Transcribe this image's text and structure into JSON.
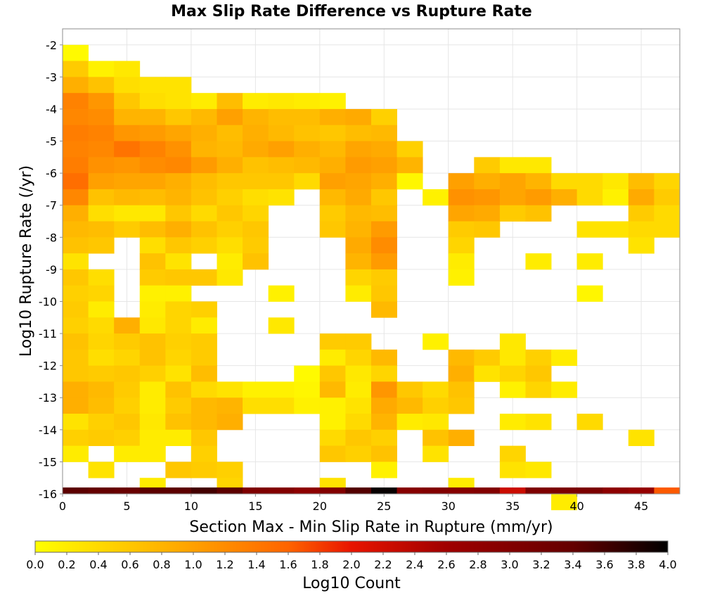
{
  "chart_data": {
    "type": "heatmap",
    "title": "Max Slip Rate Difference vs Rupture Rate",
    "xlabel": "Section Max - Min Slip Rate in Rupture (mm/yr)",
    "ylabel": "Log10 Rupture Rate (/yr)",
    "xlim": [
      0,
      48
    ],
    "ylim": [
      -16,
      -1.5
    ],
    "xticks": [
      "0",
      "5",
      "10",
      "15",
      "20",
      "25",
      "30",
      "35",
      "40",
      "45"
    ],
    "yticks": [
      "-2",
      "-3",
      "-4",
      "-5",
      "-6",
      "-7",
      "-8",
      "-9",
      "-10",
      "-11",
      "-12",
      "-13",
      "-14",
      "-15",
      "-16"
    ],
    "grid": true,
    "bin_width_x": 2,
    "bin_height_y": 0.5,
    "x_bin_starts": [
      0,
      2,
      4,
      6,
      8,
      10,
      12,
      14,
      16,
      18,
      20,
      22,
      24,
      26,
      28,
      30,
      32,
      34,
      36,
      38,
      40,
      42,
      44,
      46
    ],
    "y_bin_tops": [
      -1.5,
      -2.0,
      -2.5,
      -3.0,
      -3.5,
      -4.0,
      -4.5,
      -5.0,
      -5.5,
      -6.0,
      -6.5,
      -7.0,
      -7.5,
      -8.0,
      -8.5,
      -9.0,
      -9.5,
      -10.0,
      -10.5,
      -11.0,
      -11.5
    ],
    "values": [
      [
        null,
        null,
        null,
        null,
        null,
        null,
        null,
        null,
        null,
        null,
        null,
        null,
        null,
        null,
        null,
        null,
        null,
        null,
        null,
        null,
        null,
        null,
        null,
        null
      ],
      [
        0.05,
        null,
        null,
        null,
        null,
        null,
        null,
        null,
        null,
        null,
        null,
        null,
        null,
        null,
        null,
        null,
        null,
        null,
        null,
        null,
        null,
        null,
        null,
        null
      ],
      [
        0.55,
        0.15,
        0.25,
        null,
        null,
        null,
        null,
        null,
        null,
        null,
        null,
        null,
        null,
        null,
        null,
        null,
        null,
        null,
        null,
        null,
        null,
        null,
        null,
        null
      ],
      [
        0.85,
        0.65,
        0.35,
        0.3,
        0.3,
        null,
        null,
        null,
        null,
        null,
        null,
        null,
        null,
        null,
        null,
        null,
        null,
        null,
        null,
        null,
        null,
        null,
        null,
        null
      ],
      [
        1.3,
        1.1,
        0.6,
        0.35,
        0.3,
        0.2,
        0.7,
        0.2,
        0.25,
        0.2,
        0.15,
        null,
        null,
        null,
        null,
        null,
        null,
        null,
        null,
        null,
        null,
        null,
        null,
        null
      ],
      [
        1.25,
        1.2,
        0.8,
        0.8,
        0.6,
        0.75,
        1.0,
        0.8,
        0.7,
        0.7,
        0.85,
        0.9,
        0.5,
        null,
        null,
        null,
        null,
        null,
        null,
        null,
        null,
        null,
        null,
        null
      ],
      [
        1.35,
        1.3,
        1.1,
        1.05,
        0.95,
        0.85,
        0.7,
        0.85,
        0.75,
        0.65,
        0.6,
        0.7,
        0.75,
        null,
        null,
        null,
        null,
        null,
        null,
        null,
        null,
        null,
        null,
        null
      ],
      [
        1.3,
        1.25,
        1.45,
        1.3,
        1.15,
        0.8,
        0.75,
        0.9,
        1.0,
        0.85,
        0.75,
        0.95,
        0.9,
        0.5,
        null,
        null,
        null,
        null,
        null,
        null,
        null,
        null,
        null,
        null
      ],
      [
        1.35,
        1.15,
        1.1,
        1.2,
        1.25,
        1.05,
        0.85,
        0.65,
        0.7,
        0.75,
        0.85,
        1.05,
        1.0,
        0.8,
        null,
        null,
        0.55,
        0.25,
        0.25,
        null,
        null,
        null,
        null,
        null
      ],
      [
        1.5,
        1.0,
        0.95,
        0.95,
        0.85,
        0.7,
        0.6,
        0.6,
        0.6,
        0.4,
        1.0,
        0.95,
        0.85,
        0.1,
        null,
        1.0,
        0.85,
        0.95,
        0.8,
        0.4,
        0.4,
        0.25,
        0.7,
        0.45
      ],
      [
        1.25,
        0.65,
        0.75,
        0.7,
        0.8,
        0.65,
        0.5,
        0.35,
        0.3,
        null,
        0.75,
        0.9,
        0.6,
        null,
        0.15,
        1.15,
        1.1,
        0.95,
        1.05,
        0.85,
        0.4,
        0.15,
        0.9,
        0.55
      ],
      [
        0.85,
        0.35,
        0.25,
        0.25,
        0.6,
        0.4,
        0.6,
        0.45,
        null,
        null,
        0.55,
        0.75,
        0.7,
        null,
        null,
        0.95,
        0.9,
        0.55,
        0.65,
        null,
        null,
        null,
        0.55,
        0.4
      ],
      [
        0.75,
        0.7,
        0.55,
        0.7,
        0.85,
        0.65,
        0.5,
        0.6,
        null,
        null,
        0.6,
        0.8,
        1.05,
        null,
        null,
        0.55,
        0.6,
        null,
        null,
        null,
        0.3,
        0.3,
        0.4,
        0.4
      ],
      [
        0.65,
        0.6,
        null,
        0.35,
        0.6,
        0.5,
        0.35,
        0.55,
        null,
        null,
        null,
        0.9,
        1.2,
        null,
        null,
        0.45,
        null,
        null,
        null,
        null,
        null,
        null,
        0.3,
        null
      ],
      [
        0.3,
        null,
        null,
        0.65,
        0.3,
        null,
        0.2,
        0.65,
        null,
        null,
        null,
        0.8,
        1.05,
        null,
        null,
        0.2,
        null,
        null,
        0.2,
        null,
        0.2,
        null,
        null,
        null
      ],
      [
        0.6,
        0.35,
        null,
        0.55,
        0.6,
        0.6,
        0.25,
        null,
        null,
        null,
        null,
        0.45,
        0.55,
        null,
        null,
        0.15,
        null,
        null,
        null,
        null,
        null,
        null,
        null,
        null
      ],
      [
        0.5,
        0.45,
        null,
        0.15,
        0.15,
        null,
        null,
        null,
        0.15,
        null,
        null,
        0.2,
        0.6,
        null,
        null,
        null,
        null,
        null,
        null,
        null,
        0.1,
        null,
        null,
        null
      ],
      [
        0.55,
        0.2,
        null,
        0.2,
        0.45,
        0.5,
        null,
        null,
        null,
        null,
        null,
        null,
        0.75,
        null,
        null,
        null,
        null,
        null,
        null,
        null,
        null,
        null,
        null,
        null
      ],
      [
        0.5,
        0.4,
        0.85,
        0.25,
        0.45,
        0.2,
        null,
        null,
        0.25,
        null,
        null,
        null,
        null,
        null,
        null,
        null,
        null,
        null,
        null,
        null,
        null,
        null,
        null,
        null
      ],
      [
        0.65,
        0.45,
        0.55,
        0.65,
        0.5,
        0.55,
        null,
        null,
        null,
        null,
        0.55,
        0.55,
        null,
        null,
        0.15,
        null,
        null,
        0.25,
        null,
        null,
        null,
        null,
        null,
        null
      ]
    ],
    "values_lower": [
      [
        0.6,
        0.35,
        0.45,
        0.65,
        0.45,
        0.55,
        null,
        null,
        null,
        null,
        0.2,
        0.45,
        0.75,
        null,
        null,
        0.75,
        0.55,
        0.25,
        0.5,
        0.2,
        null,
        null,
        null,
        null
      ],
      [
        0.6,
        0.55,
        0.6,
        0.5,
        0.3,
        0.7,
        null,
        null,
        null,
        0.05,
        0.6,
        0.25,
        0.45,
        null,
        null,
        0.85,
        0.3,
        0.45,
        0.6,
        null,
        null,
        null,
        null,
        null
      ],
      [
        0.85,
        0.75,
        0.55,
        0.2,
        0.65,
        0.4,
        0.3,
        0.15,
        0.15,
        0.1,
        0.75,
        0.2,
        1.1,
        0.6,
        0.4,
        0.65,
        null,
        0.15,
        0.45,
        0.2,
        null,
        null,
        null,
        null
      ],
      [
        0.85,
        0.7,
        0.5,
        0.2,
        0.55,
        0.75,
        0.8,
        0.35,
        0.35,
        0.15,
        0.15,
        0.3,
        0.9,
        0.75,
        0.5,
        0.6,
        null,
        null,
        null,
        null,
        null,
        null,
        null,
        null
      ],
      [
        0.3,
        0.5,
        0.6,
        0.25,
        0.65,
        0.75,
        0.85,
        null,
        null,
        null,
        0.15,
        0.4,
        0.8,
        0.2,
        0.25,
        null,
        null,
        0.2,
        0.3,
        null,
        0.4,
        null,
        null,
        null
      ],
      [
        0.5,
        0.55,
        0.5,
        0.2,
        0.2,
        0.6,
        null,
        null,
        null,
        null,
        0.4,
        0.6,
        0.5,
        null,
        0.65,
        0.85,
        null,
        null,
        null,
        null,
        null,
        null,
        0.3,
        null
      ],
      [
        0.2,
        null,
        0.2,
        0.2,
        null,
        0.5,
        null,
        null,
        null,
        null,
        0.6,
        0.5,
        0.65,
        null,
        0.3,
        null,
        null,
        0.45,
        null,
        null,
        null,
        null,
        null,
        null
      ],
      [
        null,
        0.3,
        null,
        null,
        0.6,
        0.55,
        0.5,
        null,
        null,
        null,
        null,
        null,
        0.15,
        null,
        null,
        null,
        null,
        0.3,
        0.25,
        null,
        null,
        null,
        null,
        null
      ],
      [
        null,
        null,
        null,
        0.2,
        null,
        null,
        0.45,
        null,
        null,
        null,
        0.3,
        null,
        null,
        null,
        null,
        0.2,
        null,
        null,
        null,
        null,
        null,
        null,
        null,
        null
      ],
      [
        null,
        null,
        null,
        null,
        null,
        null,
        null,
        null,
        null,
        null,
        null,
        null,
        null,
        null,
        null,
        null,
        null,
        null,
        null,
        0.2,
        null,
        null,
        null,
        null
      ]
    ],
    "bottom_row": [
      3.45,
      3.4,
      3.35,
      3.45,
      3.45,
      3.6,
      3.45,
      3.05,
      3.0,
      2.85,
      3.0,
      3.5,
      3.95,
      2.95,
      3.0,
      2.95,
      3.0,
      2.25,
      3.05,
      3.1,
      3.1,
      2.85,
      2.75,
      1.65
    ],
    "bottom_row_y": [
      -16,
      -15.8
    ],
    "colorbar": {
      "label": "Log10 Count",
      "range": [
        0,
        4
      ],
      "ticks": [
        "0.0",
        "0.2",
        "0.4",
        "0.6",
        "0.8",
        "1.0",
        "1.2",
        "1.4",
        "1.6",
        "1.8",
        "2.0",
        "2.2",
        "2.4",
        "2.6",
        "2.8",
        "3.0",
        "3.2",
        "3.4",
        "3.6",
        "3.8",
        "4.0"
      ],
      "colors": [
        {
          "v": 0.0,
          "c": "#ffff00"
        },
        {
          "v": 0.8,
          "c": "#ffb400"
        },
        {
          "v": 1.6,
          "c": "#ff6400"
        },
        {
          "v": 2.0,
          "c": "#e81400"
        },
        {
          "v": 2.6,
          "c": "#a00000"
        },
        {
          "v": 3.4,
          "c": "#640000"
        },
        {
          "v": 4.0,
          "c": "#000000"
        }
      ]
    }
  }
}
